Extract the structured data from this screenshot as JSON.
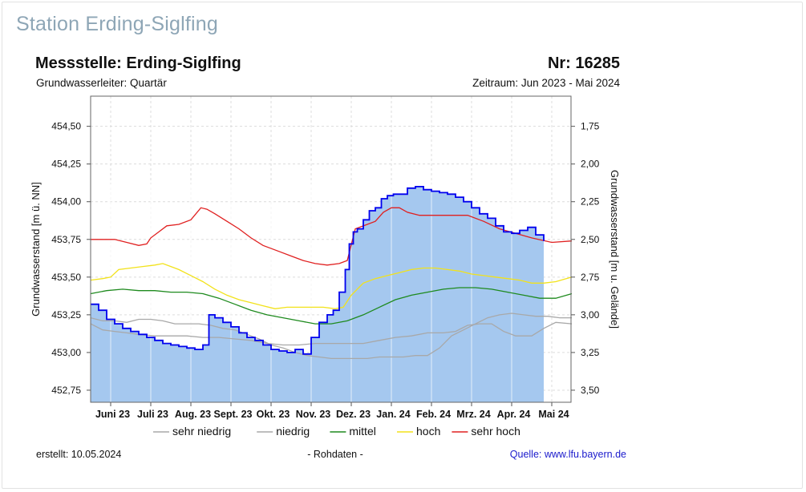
{
  "page": {
    "station_title": "Station Erding-Siglfing"
  },
  "figure": {
    "heading_left": "Messstelle: Erding-Siglfing",
    "heading_right": "Nr: 16285",
    "sub_left": "Grundwasserleiter: Quartär",
    "sub_right": "Zeitraum: Jun 2023 - Mai 2024",
    "created": "erstellt:  10.05.2024",
    "raw_note": "- Rohdaten -",
    "source": "Quelle: www.lfu.bayern.de",
    "colors": {
      "measured_fill": "#a5c8ef",
      "measured_line": "#0000ee",
      "sehr_niedrig": "#a8a8a8",
      "niedrig": "#a8a8a8",
      "mittel": "#1e8a1e",
      "hoch": "#f2e21a",
      "sehr_hoch": "#e02020",
      "source_link": "#1a1acc"
    }
  },
  "chart_data": {
    "type": "line",
    "title": "Messstelle: Erding-Siglfing",
    "xlabel": "",
    "ylabel": "Grundwasserstand [m ü. NN]",
    "ylabel_right": "Grundwasserstand [m u. Gelände]",
    "x_ticks": [
      "Juni 23",
      "Juli 23",
      "Aug. 23",
      "Sept. 23",
      "Okt. 23",
      "Nov. 23",
      "Dez. 23",
      "Jan. 24",
      "Feb. 24",
      "Mrz. 24",
      "Apr. 24",
      "Mai 24"
    ],
    "ylim": [
      452.67,
      454.7
    ],
    "y_ticks": [
      452.75,
      453.0,
      453.25,
      453.5,
      453.75,
      454.0,
      454.25,
      454.5
    ],
    "y_tick_labels": [
      "452,75",
      "453,00",
      "453,25",
      "453,50",
      "453,75",
      "454,00",
      "454,25",
      "454,50"
    ],
    "y2_ticks": [
      1.75,
      2.0,
      2.25,
      2.5,
      2.75,
      3.0,
      3.25,
      3.5
    ],
    "y2_tick_labels": [
      "1,75",
      "2,00",
      "2,25",
      "2,50",
      "2,75",
      "3,00",
      "3,25",
      "3,50"
    ],
    "grid": true,
    "legend_position": "bottom",
    "legend": [
      "sehr niedrig",
      "niedrig",
      "mittel",
      "hoch",
      "sehr hoch"
    ],
    "series": [
      {
        "name": "sehr hoch",
        "x": [
          0.0,
          0.3,
          0.6,
          0.9,
          1.2,
          1.4,
          1.5,
          1.7,
          1.9,
          2.2,
          2.5,
          2.75,
          2.9,
          3.1,
          3.4,
          3.7,
          4.0,
          4.3,
          4.7,
          5.0,
          5.3,
          5.6,
          5.9,
          6.2,
          6.4,
          6.6,
          6.9,
          7.1,
          7.3,
          7.5,
          7.7,
          7.9,
          8.2,
          8.6,
          9.0,
          9.4,
          9.8,
          10.2,
          10.6,
          11.0,
          11.5,
          12.0
        ],
        "y": [
          453.75,
          453.75,
          453.75,
          453.73,
          453.71,
          453.72,
          453.76,
          453.8,
          453.84,
          453.85,
          453.88,
          453.96,
          453.95,
          453.92,
          453.87,
          453.82,
          453.76,
          453.71,
          453.67,
          453.64,
          453.61,
          453.59,
          453.58,
          453.59,
          453.61,
          453.82,
          453.85,
          453.87,
          453.93,
          453.96,
          453.96,
          453.93,
          453.91,
          453.91,
          453.91,
          453.91,
          453.87,
          453.82,
          453.79,
          453.76,
          453.73,
          453.74
        ]
      },
      {
        "name": "hoch",
        "x": [
          0.0,
          0.3,
          0.5,
          0.7,
          1.0,
          1.3,
          1.6,
          1.8,
          2.0,
          2.2,
          2.5,
          2.8,
          3.1,
          3.4,
          3.7,
          4.0,
          4.3,
          4.6,
          4.9,
          5.2,
          5.5,
          5.8,
          6.1,
          6.3,
          6.5,
          6.8,
          7.1,
          7.4,
          7.7,
          8.0,
          8.3,
          8.6,
          8.9,
          9.2,
          9.5,
          9.8,
          10.1,
          10.4,
          10.7,
          11.0,
          11.3,
          11.6,
          12.0
        ],
        "y": [
          453.48,
          453.49,
          453.5,
          453.55,
          453.56,
          453.57,
          453.58,
          453.59,
          453.57,
          453.55,
          453.51,
          453.47,
          453.42,
          453.38,
          453.35,
          453.33,
          453.31,
          453.29,
          453.3,
          453.3,
          453.3,
          453.3,
          453.29,
          453.3,
          453.38,
          453.46,
          453.49,
          453.51,
          453.53,
          453.55,
          453.56,
          453.56,
          453.55,
          453.54,
          453.52,
          453.51,
          453.5,
          453.49,
          453.48,
          453.46,
          453.46,
          453.47,
          453.5
        ]
      },
      {
        "name": "mittel",
        "x": [
          0.0,
          0.4,
          0.8,
          1.2,
          1.6,
          2.0,
          2.4,
          2.8,
          3.2,
          3.6,
          4.0,
          4.4,
          4.8,
          5.2,
          5.6,
          6.0,
          6.4,
          6.8,
          7.2,
          7.6,
          8.0,
          8.4,
          8.8,
          9.2,
          9.6,
          10.0,
          10.4,
          10.8,
          11.2,
          11.6,
          12.0
        ],
        "y": [
          453.39,
          453.41,
          453.42,
          453.41,
          453.41,
          453.4,
          453.4,
          453.39,
          453.36,
          453.32,
          453.28,
          453.25,
          453.23,
          453.21,
          453.19,
          453.19,
          453.21,
          453.25,
          453.3,
          453.35,
          453.38,
          453.4,
          453.42,
          453.43,
          453.43,
          453.42,
          453.4,
          453.38,
          453.36,
          453.36,
          453.39
        ]
      },
      {
        "name": "niedrig",
        "x": [
          0.0,
          0.3,
          0.6,
          0.9,
          1.2,
          1.6,
          2.0,
          2.4,
          2.8,
          3.2,
          3.6,
          4.0,
          4.4,
          4.8,
          5.2,
          5.6,
          6.0,
          6.4,
          6.8,
          7.2,
          7.6,
          8.0,
          8.4,
          8.8,
          9.1,
          9.4,
          9.7,
          10.0,
          10.3,
          10.6,
          11.0,
          11.3,
          11.6,
          12.0
        ],
        "y": [
          453.19,
          453.15,
          453.14,
          453.13,
          453.12,
          453.11,
          453.11,
          453.11,
          453.1,
          453.1,
          453.09,
          453.08,
          453.06,
          453.05,
          453.05,
          453.06,
          453.06,
          453.06,
          453.06,
          453.08,
          453.1,
          453.11,
          453.13,
          453.13,
          453.14,
          453.18,
          453.19,
          453.19,
          453.14,
          453.11,
          453.11,
          453.16,
          453.2,
          453.19
        ]
      },
      {
        "name": "sehr niedrig",
        "x": [
          0.0,
          0.3,
          0.6,
          0.9,
          1.2,
          1.5,
          1.8,
          2.1,
          2.4,
          2.7,
          3.0,
          3.3,
          3.6,
          3.9,
          4.2,
          4.5,
          4.8,
          5.1,
          5.4,
          5.7,
          6.0,
          6.3,
          6.6,
          6.9,
          7.2,
          7.5,
          7.8,
          8.1,
          8.4,
          8.7,
          9.0,
          9.3,
          9.6,
          9.9,
          10.2,
          10.5,
          10.8,
          11.1,
          11.4,
          11.7,
          12.0
        ],
        "y": [
          453.23,
          453.21,
          453.21,
          453.2,
          453.22,
          453.22,
          453.21,
          453.19,
          453.19,
          453.19,
          453.18,
          453.16,
          453.15,
          453.12,
          453.09,
          453.05,
          453.03,
          453.0,
          452.98,
          452.97,
          452.96,
          452.96,
          452.96,
          452.96,
          452.97,
          452.97,
          452.97,
          452.98,
          452.98,
          453.03,
          453.11,
          453.15,
          453.19,
          453.23,
          453.25,
          453.26,
          453.25,
          453.24,
          453.24,
          453.23,
          453.23
        ]
      },
      {
        "name": "Messwerte",
        "x": [
          0.0,
          0.2,
          0.4,
          0.6,
          0.8,
          1.0,
          1.2,
          1.4,
          1.6,
          1.8,
          2.0,
          2.2,
          2.4,
          2.6,
          2.8,
          2.95,
          3.1,
          3.3,
          3.5,
          3.7,
          3.9,
          4.1,
          4.3,
          4.5,
          4.7,
          4.9,
          5.1,
          5.3,
          5.5,
          5.7,
          5.9,
          6.05,
          6.2,
          6.35,
          6.45,
          6.55,
          6.65,
          6.8,
          6.95,
          7.1,
          7.25,
          7.4,
          7.55,
          7.7,
          7.9,
          8.1,
          8.3,
          8.5,
          8.7,
          8.9,
          9.1,
          9.3,
          9.5,
          9.7,
          9.9,
          10.1,
          10.3,
          10.5,
          10.7,
          10.9,
          11.1,
          11.3
        ],
        "y": [
          453.32,
          453.28,
          453.22,
          453.19,
          453.16,
          453.14,
          453.12,
          453.1,
          453.08,
          453.06,
          453.05,
          453.04,
          453.03,
          453.02,
          453.05,
          453.25,
          453.23,
          453.2,
          453.17,
          453.13,
          453.1,
          453.08,
          453.05,
          453.02,
          453.01,
          453.0,
          453.02,
          452.99,
          453.1,
          453.2,
          453.25,
          453.28,
          453.4,
          453.55,
          453.72,
          453.8,
          453.82,
          453.88,
          453.94,
          453.96,
          454.02,
          454.04,
          454.05,
          454.05,
          454.09,
          454.1,
          454.08,
          454.07,
          454.06,
          454.05,
          454.03,
          454.0,
          453.96,
          453.92,
          453.89,
          453.84,
          453.8,
          453.79,
          453.81,
          453.83,
          453.78,
          453.74
        ]
      }
    ]
  }
}
